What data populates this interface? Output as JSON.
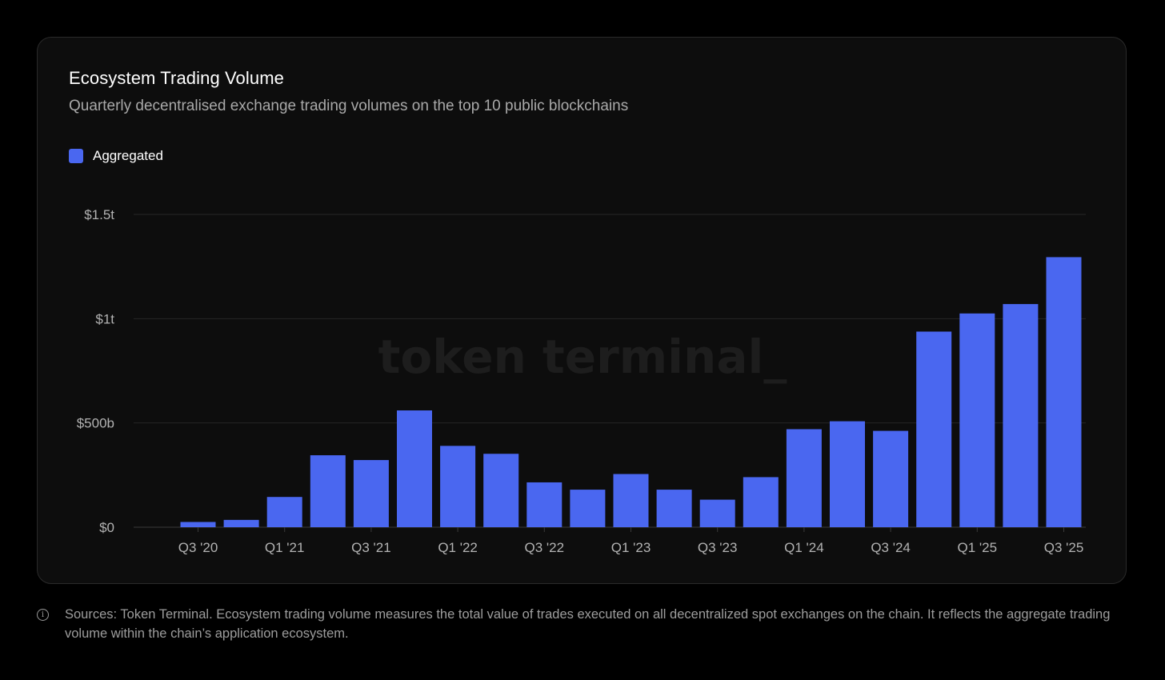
{
  "title": "Ecosystem Trading Volume",
  "subtitle": "Quarterly decentralised exchange trading volumes on the top 10 public blockchains",
  "watermark": "token terminal_",
  "footnote": "Sources: Token Terminal. Ecosystem trading volume measures the total value of trades executed on all decentralized spot exchanges on the chain. It reflects the aggregate trading volume within the chain’s application ecosystem.",
  "colors": {
    "bar": "#4a67f0",
    "background": "#000000",
    "card": "#0d0d0d",
    "grid": "#262626"
  },
  "chart_data": {
    "type": "bar",
    "series": [
      {
        "name": "Aggregated",
        "values": [
          25,
          35,
          145,
          345,
          322,
          560,
          390,
          352,
          215,
          180,
          255,
          180,
          132,
          240,
          470,
          508,
          462,
          938,
          1025,
          1070,
          1295
        ]
      }
    ],
    "categories": [
      "Q3 '20",
      "Q4 '20",
      "Q1 '21",
      "Q2 '21",
      "Q3 '21",
      "Q4 '21",
      "Q1 '22",
      "Q2 '22",
      "Q3 '22",
      "Q4 '22",
      "Q1 '23",
      "Q2 '23",
      "Q3 '23",
      "Q4 '23",
      "Q1 '24",
      "Q2 '24",
      "Q3 '24",
      "Q4 '24",
      "Q1 '25",
      "Q2 '25",
      "Q3 '25"
    ],
    "value_unit": "billions USD",
    "x_tick_labels": [
      "Q3 '20",
      "Q1 '21",
      "Q3 '21",
      "Q1 '22",
      "Q3 '22",
      "Q1 '23",
      "Q3 '23",
      "Q1 '24",
      "Q3 '24",
      "Q1 '25",
      "Q3 '25"
    ],
    "y_ticks": [
      {
        "value": 0,
        "label": "$0"
      },
      {
        "value": 500,
        "label": "$500b"
      },
      {
        "value": 1000,
        "label": "$1t"
      },
      {
        "value": 1500,
        "label": "$1.5t"
      }
    ],
    "ylim": [
      0,
      1500
    ],
    "grid": true,
    "legend_position": "top-left"
  }
}
